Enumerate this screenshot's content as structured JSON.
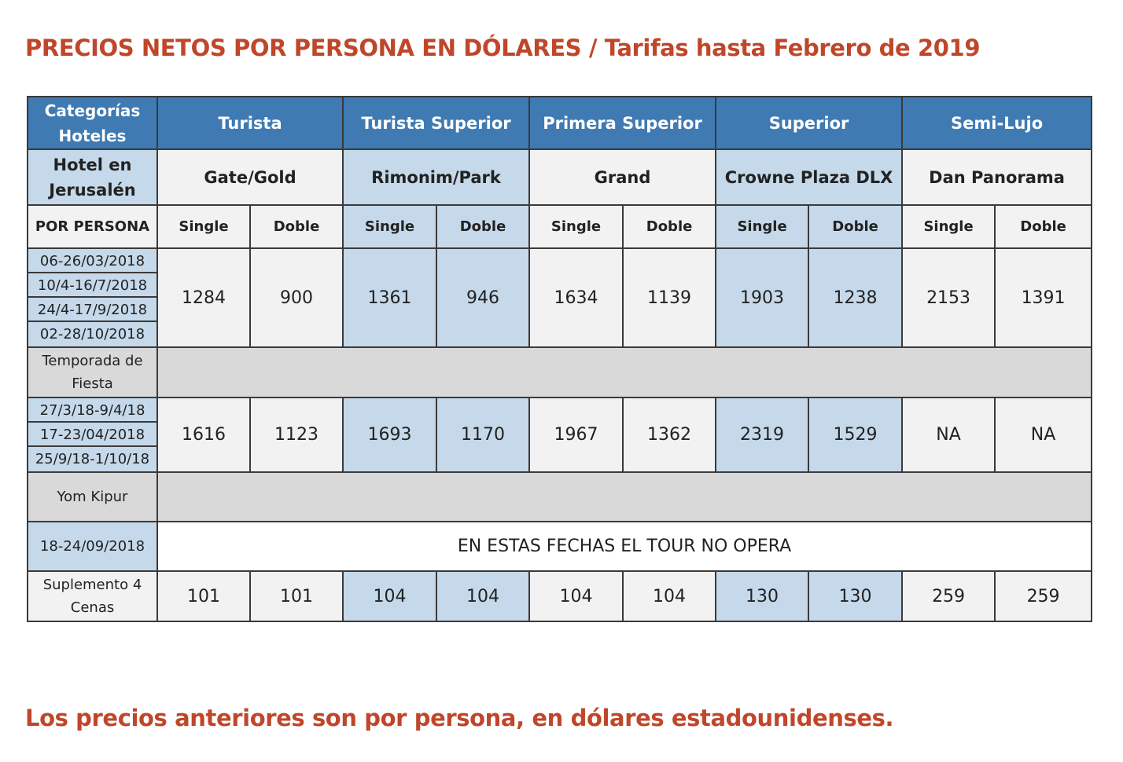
{
  "headline": "PRECIOS NETOS POR PERSONA EN DÓLARES / Tarifas hasta Febrero de 2019",
  "footer_note": "Los precios anteriores son por persona, en dólares estadounidenses.",
  "table": {
    "corner_label": "Categorías Hoteles",
    "categories": [
      "Turista",
      "Turista Superior",
      "Primera Superior",
      "Superior",
      "Semi-Lujo"
    ],
    "hotel_row_label": "Hotel en Jerusalén",
    "hotels": [
      "Gate/Gold",
      "Rimonim/Park",
      "Grand",
      "Crowne Plaza DLX",
      "Dan Panorama"
    ],
    "per_person_label": "POR PERSONA",
    "single_label": "Single",
    "double_label": "Doble",
    "season1": {
      "dates": [
        "06-26/03/2018",
        "10/4-16/7/2018",
        "24/4-17/9/2018",
        "02-28/10/2018"
      ],
      "prices": [
        "1284",
        "900",
        "1361",
        "946",
        "1634",
        "1139",
        "1903",
        "1238",
        "2153",
        "1391"
      ]
    },
    "fiesta_label": "Temporada de Fiesta",
    "season2": {
      "dates": [
        "27/3/18-9/4/18",
        "17-23/04/2018",
        "25/9/18-1/10/18"
      ],
      "prices": [
        "1616",
        "1123",
        "1693",
        "1170",
        "1967",
        "1362",
        "2319",
        "1529",
        "NA",
        "NA"
      ]
    },
    "yom_kipur_label": "Yom Kipur",
    "yom_kipur_dates": "18-24/09/2018",
    "no_operation_text": "EN ESTAS FECHAS EL TOUR NO OPERA",
    "supplement_label": "Suplemento 4 Cenas",
    "supplement_prices": [
      "101",
      "101",
      "104",
      "104",
      "104",
      "104",
      "130",
      "130",
      "259",
      "259"
    ]
  },
  "colors": {
    "header_blue": "#3f7ab3",
    "light_blue": "#c5d9ea",
    "gray": "#d9d9d9",
    "headline_red": "#c0462a"
  }
}
